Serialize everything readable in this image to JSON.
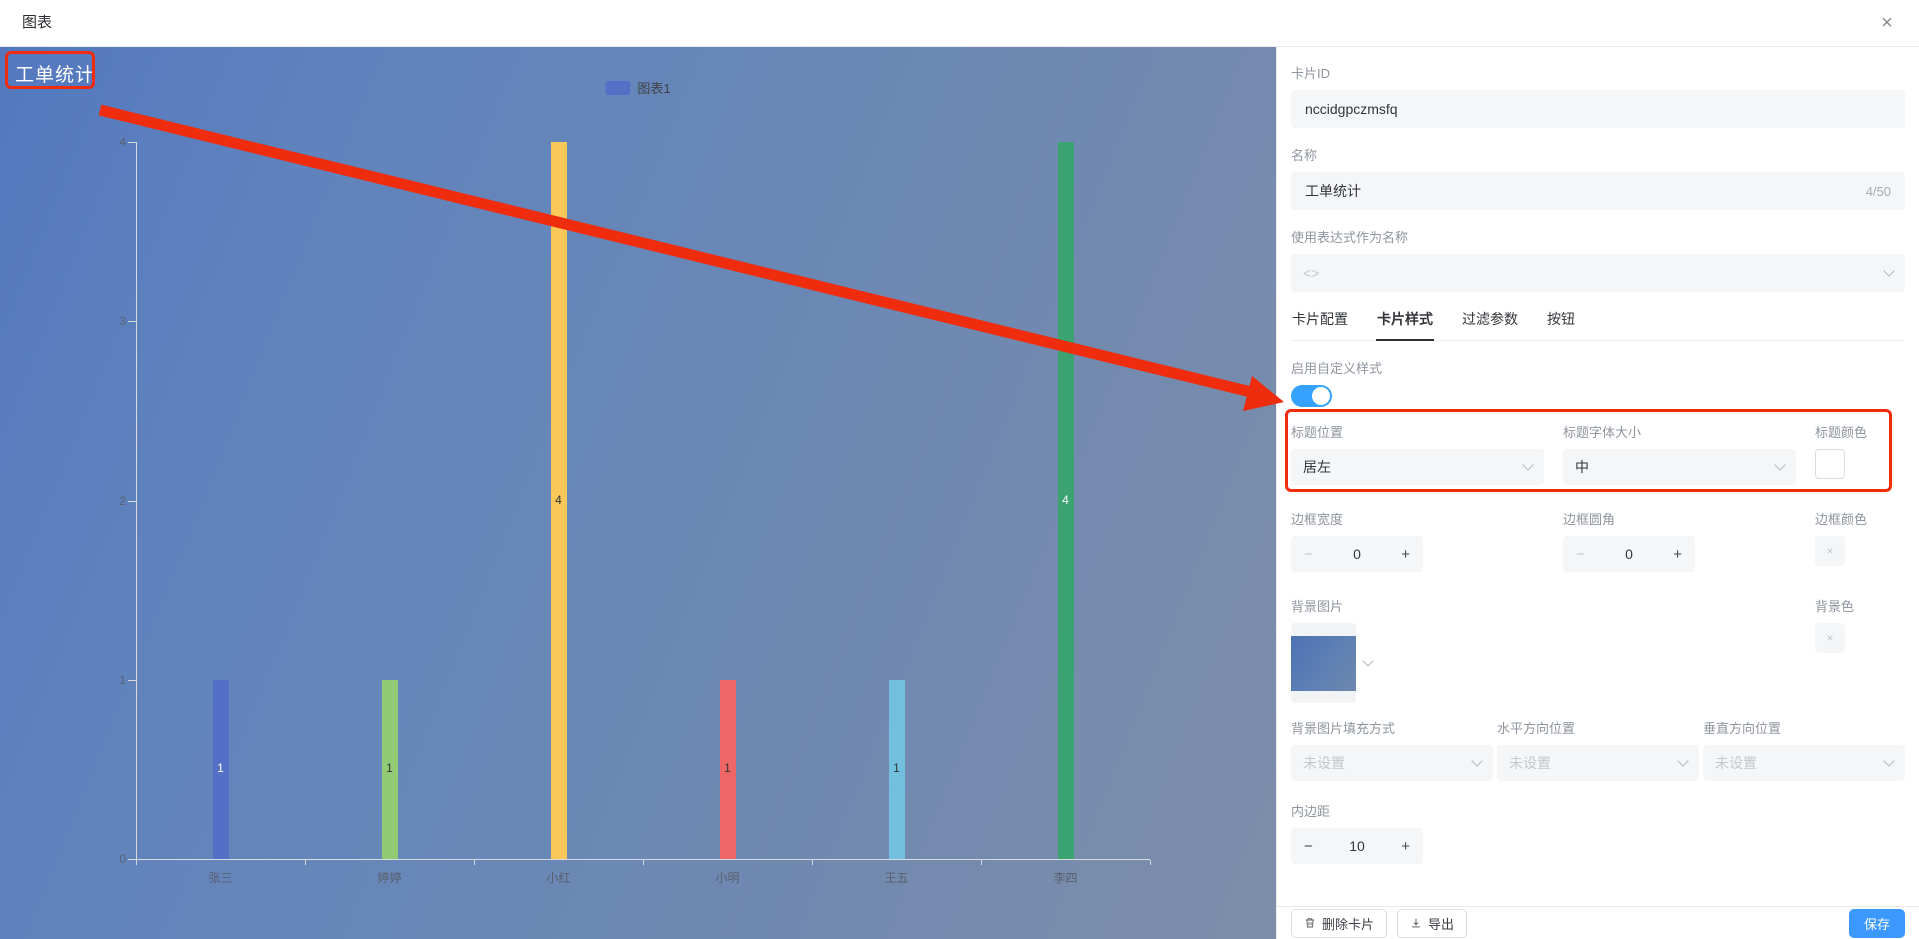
{
  "dialog": {
    "title": "图表",
    "close": "×"
  },
  "chart_data": {
    "type": "bar",
    "title": "工单统计",
    "legend": [
      "图表1"
    ],
    "categories": [
      "张三",
      "婷婷",
      "小红",
      "小明",
      "王五",
      "李四"
    ],
    "values": [
      1,
      1,
      4,
      1,
      1,
      4
    ],
    "bar_colors": [
      "#5470c6",
      "#91cc75",
      "#fac858",
      "#ee6666",
      "#73c0de",
      "#3ba272"
    ],
    "value_label_colors": [
      "#ffffff",
      "#333333",
      "#333333",
      "#333333",
      "#333333",
      "#ffffff"
    ],
    "ylim": [
      0,
      4
    ],
    "yticks": [
      0,
      1,
      2,
      3,
      4
    ],
    "xlabel": "",
    "ylabel": "",
    "grid": false,
    "legend_position": "top-center",
    "value_label_position": "inside-middle"
  },
  "panel": {
    "card_id": {
      "label": "卡片ID",
      "value": "nccidgpczmsfq"
    },
    "name": {
      "label": "名称",
      "value": "工单统计",
      "counter": "4/50"
    },
    "expression": {
      "label": "使用表达式作为名称",
      "placeholder": "<>"
    },
    "tabs": [
      {
        "label": "卡片配置",
        "active": false
      },
      {
        "label": "卡片样式",
        "active": true
      },
      {
        "label": "过滤参数",
        "active": false
      },
      {
        "label": "按钮",
        "active": false
      }
    ],
    "custom_style": {
      "label": "启用自定义样式",
      "enabled": true
    },
    "title_position": {
      "label": "标题位置",
      "value": "居左"
    },
    "title_font_size": {
      "label": "标题字体大小",
      "value": "中"
    },
    "title_color": {
      "label": "标题颜色",
      "value": "#ffffff"
    },
    "border_width": {
      "label": "边框宽度",
      "value": "0",
      "minus": "−",
      "plus": "+"
    },
    "border_radius": {
      "label": "边框圆角",
      "value": "0",
      "minus": "−",
      "plus": "+"
    },
    "border_color": {
      "label": "边框颜色",
      "clear": "×"
    },
    "bg_image": {
      "label": "背景图片"
    },
    "bg_color": {
      "label": "背景色",
      "clear": "×"
    },
    "bg_fill_mode": {
      "label": "背景图片填充方式",
      "placeholder": "未设置"
    },
    "h_position": {
      "label": "水平方向位置",
      "placeholder": "未设置"
    },
    "v_position": {
      "label": "垂直方向位置",
      "placeholder": "未设置"
    },
    "padding": {
      "label": "内边距",
      "value": "10",
      "minus": "−",
      "plus": "+"
    },
    "footer": {
      "delete": "删除卡片",
      "export": "导出",
      "save": "保存"
    }
  },
  "annotations": {
    "highlight_color": "#ef2c0e"
  }
}
